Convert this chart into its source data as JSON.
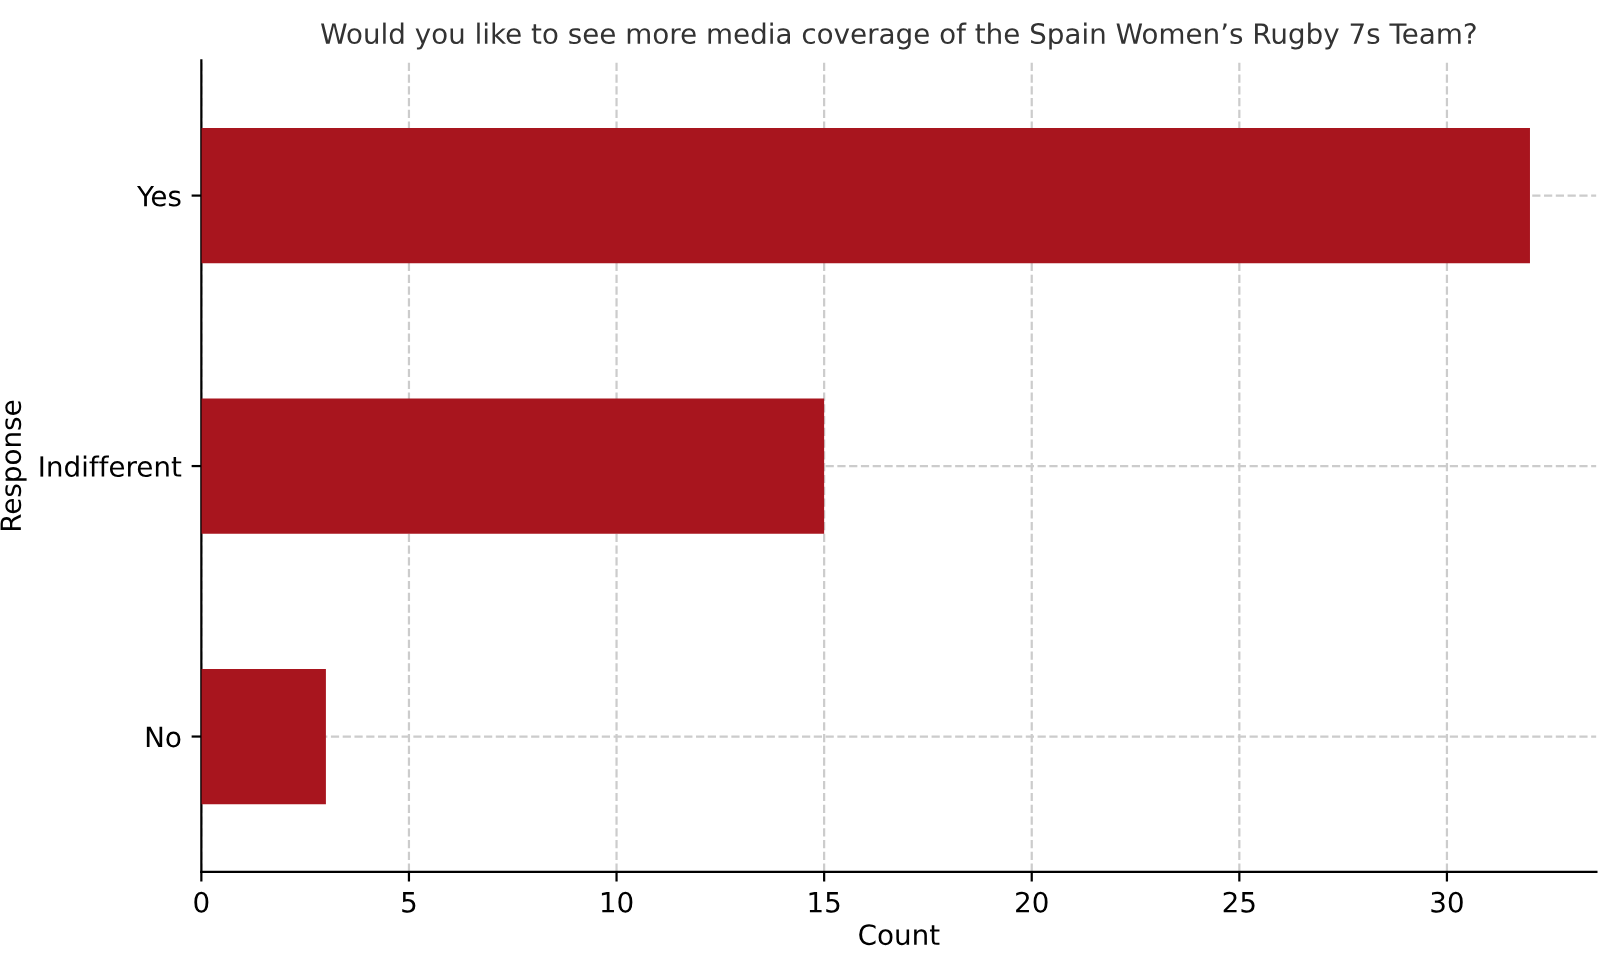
{
  "chart_data": {
    "type": "bar",
    "orientation": "horizontal",
    "title": "Would you like to see more media coverage of the Spain Women’s Rugby 7s Team?",
    "xlabel": "Count",
    "ylabel": "Response",
    "categories": [
      "Yes",
      "Indifferent",
      "No"
    ],
    "values": [
      32,
      15,
      3
    ],
    "color": "#a8151e",
    "xlim": [
      0,
      33.6
    ],
    "xticks": [
      0,
      5,
      10,
      15,
      20,
      25,
      30
    ],
    "grid": true
  }
}
